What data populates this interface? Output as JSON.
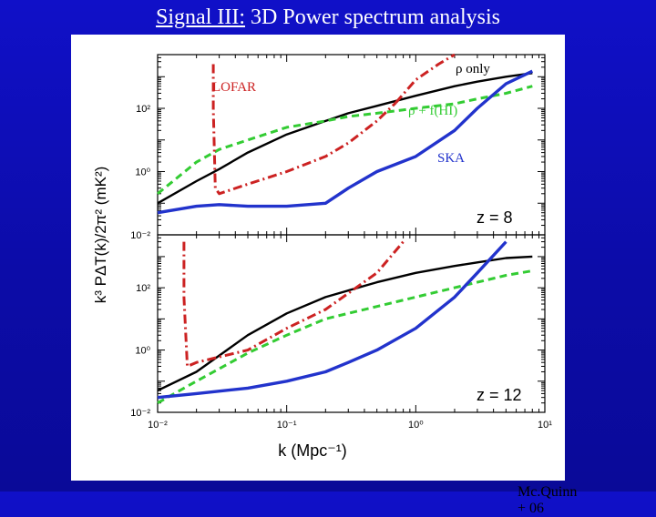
{
  "slide": {
    "title_underlined": "Signal III:",
    "title_rest": "3D Power spectrum analysis",
    "credit": "Mc.Quinn + 06"
  },
  "chart_data": {
    "type": "line",
    "xlabel": "k   (Mpc⁻¹)",
    "ylabel": "k³ PΔT(k)/2π²   (mK²)",
    "xscale": "log",
    "yscale": "log",
    "xlim": [
      0.01,
      10
    ],
    "x_tick_labels": [
      "10⁻²",
      "10⁻¹",
      "10⁰",
      "10¹"
    ],
    "x_ticks": [
      0.01,
      0.1,
      1,
      10
    ],
    "colors": {
      "rho_only": "#000000",
      "rho_fHI": "#33cc33",
      "lofar": "#cc2222",
      "ska": "#2233cc"
    },
    "panels": [
      {
        "label": "z = 8",
        "ylim": [
          0.01,
          5000
        ],
        "y_tick_labels": [
          "10⁻²",
          "10⁰",
          "10²"
        ],
        "y_ticks": [
          0.01,
          1,
          100
        ],
        "annotations": {
          "rho_only": "ρ  only",
          "rho_fHI": "ρ + f(HI)",
          "lofar": "LOFAR",
          "ska": "SKA"
        },
        "series": [
          {
            "key": "rho_only",
            "style": "solid",
            "x": [
              0.01,
              0.02,
              0.03,
              0.05,
              0.1,
              0.2,
              0.3,
              0.5,
              1,
              2,
              3,
              5,
              8
            ],
            "y": [
              0.1,
              0.5,
              1.2,
              4,
              15,
              40,
              70,
              120,
              250,
              500,
              700,
              1000,
              1300
            ]
          },
          {
            "key": "rho_fHI",
            "style": "dashed",
            "x": [
              0.01,
              0.02,
              0.03,
              0.05,
              0.1,
              0.2,
              0.3,
              0.5,
              1,
              2,
              3,
              5,
              8
            ],
            "y": [
              0.2,
              2,
              5,
              10,
              25,
              40,
              55,
              70,
              100,
              140,
              200,
              300,
              500
            ]
          },
          {
            "key": "lofar",
            "style": "dashdot",
            "x": [
              0.027,
              0.027,
              0.028,
              0.03,
              0.05,
              0.1,
              0.2,
              0.3,
              0.5,
              0.7
            ],
            "y": [
              2500,
              100,
              0.3,
              0.2,
              0.4,
              1,
              3,
              8,
              40,
              150
            ]
          },
          {
            "key": "lofar",
            "style": "dashdot",
            "x": [
              0.7,
              1,
              1.5,
              2
            ],
            "y": [
              150,
              800,
              2500,
              5000
            ]
          },
          {
            "key": "ska",
            "style": "solid",
            "x": [
              0.01,
              0.02,
              0.03,
              0.05,
              0.1,
              0.2,
              0.3,
              0.5,
              1,
              2,
              3,
              5,
              8
            ],
            "y": [
              0.05,
              0.08,
              0.09,
              0.08,
              0.08,
              0.1,
              0.3,
              1,
              3,
              20,
              100,
              600,
              1500
            ]
          }
        ]
      },
      {
        "label": "z = 12",
        "ylim": [
          0.01,
          5000
        ],
        "y_tick_labels": [
          "10⁻²",
          "10⁰",
          "10²"
        ],
        "y_ticks": [
          0.01,
          1,
          100
        ],
        "series": [
          {
            "key": "rho_only",
            "style": "solid",
            "x": [
              0.01,
              0.02,
              0.05,
              0.1,
              0.2,
              0.5,
              1,
              2,
              3,
              5,
              8
            ],
            "y": [
              0.05,
              0.2,
              3,
              15,
              50,
              150,
              300,
              500,
              650,
              900,
              1000
            ]
          },
          {
            "key": "rho_fHI",
            "style": "dashed",
            "x": [
              0.01,
              0.02,
              0.05,
              0.1,
              0.2,
              0.5,
              1,
              2,
              3,
              5,
              8
            ],
            "y": [
              0.02,
              0.1,
              0.8,
              3,
              10,
              25,
              50,
              100,
              150,
              250,
              350
            ]
          },
          {
            "key": "lofar",
            "style": "dashdot",
            "x": [
              0.016,
              0.016,
              0.017,
              0.02,
              0.05,
              0.1,
              0.2,
              0.5,
              0.8
            ],
            "y": [
              3000,
              50,
              0.3,
              0.4,
              1,
              5,
              20,
              300,
              3000
            ]
          },
          {
            "key": "ska",
            "style": "solid",
            "x": [
              0.01,
              0.02,
              0.05,
              0.1,
              0.2,
              0.3,
              0.5,
              1,
              2,
              3,
              5
            ],
            "y": [
              0.03,
              0.04,
              0.06,
              0.1,
              0.2,
              0.4,
              1,
              5,
              50,
              300,
              3000
            ]
          }
        ]
      }
    ]
  }
}
